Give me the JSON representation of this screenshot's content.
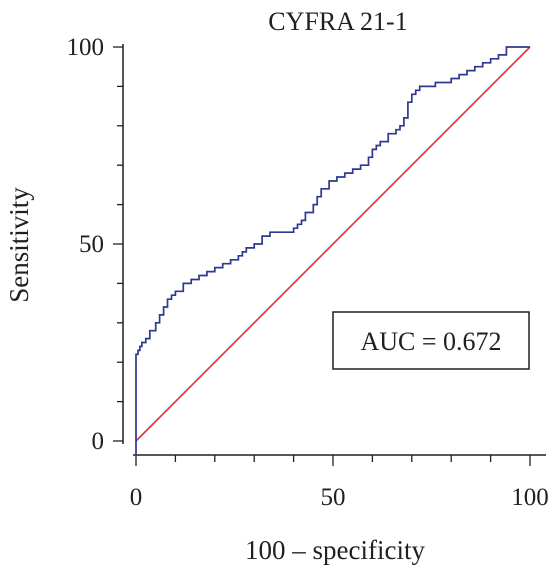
{
  "chart_data": {
    "type": "line",
    "title": "CYFRA 21-1",
    "xlabel": "100 – specificity",
    "ylabel": "Sensitivity",
    "xlim": [
      0,
      100
    ],
    "ylim": [
      0,
      100
    ],
    "xticks": [
      0,
      50,
      100
    ],
    "yticks": [
      0,
      50,
      100
    ],
    "grid": false,
    "annotation": "AUC = 0.672",
    "colors": {
      "roc": "#2b3990",
      "reference": "#e8312a",
      "axis": "#231f20"
    },
    "series": [
      {
        "name": "",
        "type": "roc-step",
        "x": [
          0,
          0,
          0.5,
          1,
          1.5,
          2.5,
          3.5,
          5,
          6,
          7,
          8,
          9,
          10,
          12,
          14,
          16,
          18,
          20,
          22,
          24,
          26,
          27,
          28,
          30,
          32,
          34,
          36,
          39,
          40,
          41,
          42,
          43,
          45,
          46,
          47,
          49,
          51,
          53,
          55,
          57,
          59,
          60,
          61,
          62,
          64,
          66,
          67,
          68,
          69,
          70,
          71,
          72,
          73,
          74,
          75,
          76,
          78,
          80,
          82,
          84,
          86,
          88,
          90,
          92,
          94,
          100
        ],
        "y": [
          0,
          22,
          23,
          24,
          25,
          26,
          28,
          30,
          32,
          34,
          36,
          37,
          38,
          40,
          41,
          42,
          43,
          44,
          45,
          46,
          47,
          48,
          49,
          50,
          52,
          53,
          53,
          53,
          54,
          55,
          56,
          58,
          60,
          62,
          64,
          66,
          67,
          68,
          69,
          70,
          72,
          74,
          75,
          76,
          78,
          79,
          80,
          82,
          86,
          88,
          89,
          90,
          90,
          90,
          90,
          91,
          91,
          92,
          93,
          94,
          95,
          96,
          97,
          98,
          100,
          100
        ]
      },
      {
        "name": "",
        "type": "reference",
        "x": [
          0,
          100
        ],
        "y": [
          0,
          100
        ]
      }
    ]
  }
}
